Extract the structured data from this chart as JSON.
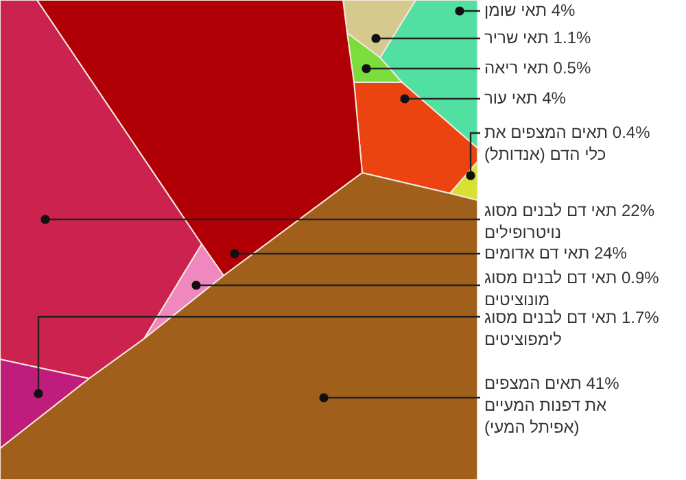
{
  "chart_data": {
    "type": "other",
    "categories": [
      "תאי שומן",
      "תאי שריר",
      "תאי ריאה",
      "תאי עור",
      "תאים המצפים את כלי הדם (אנדותל)",
      "תאי דם לבנים מסוג נויטרופילים",
      "תאי דם אדומים",
      "תאי דם לבנים מסוג מונוציטים",
      "תאי דם לבנים מסוג לימפוציטים",
      "תאים המצפים את דפנות המעיים (אפיתל המעי)"
    ],
    "values": [
      4,
      1.1,
      0.5,
      4,
      0.4,
      22,
      24,
      0.9,
      1.7,
      41
    ],
    "value_labels": [
      "4%",
      "1.1%",
      "0.5%",
      "4%",
      "0.4%",
      "22%",
      "24%",
      "0.9%",
      "1.7%",
      "41%"
    ],
    "colors": [
      "#52e0a2",
      "#d6c98e",
      "#7add3c",
      "#ec4410",
      "#d8e034",
      "#cc2250",
      "#b00006",
      "#f088c0",
      "#c01c7c",
      "#a0601c"
    ]
  }
}
